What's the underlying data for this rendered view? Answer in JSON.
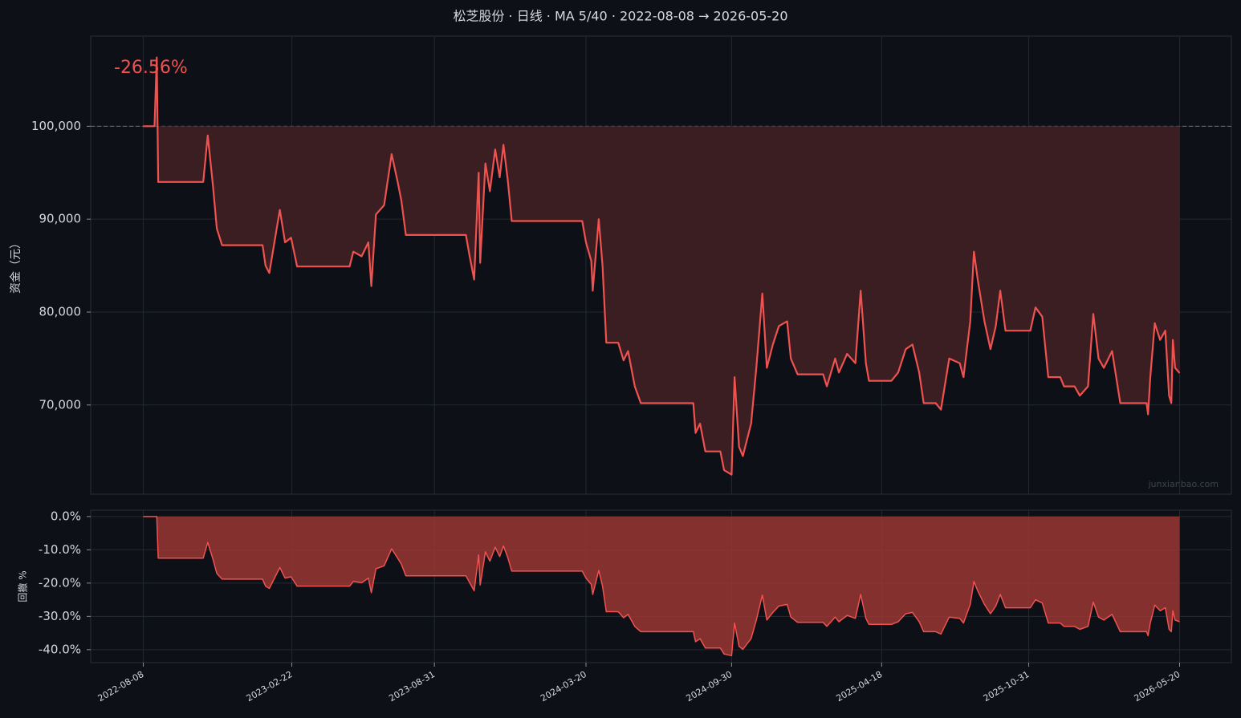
{
  "chart_data": [
    {
      "type": "line",
      "title": "松芝股份 · 日线 · MA 5/40 · 2022-08-08 → 2026-05-20",
      "ylabel": "资金（元）",
      "annotation": "-26.56%",
      "watermark": "junxianbao.com",
      "baseline": 100000,
      "grid": true,
      "xlim": [
        "2022-05-30",
        "2026-07-28"
      ],
      "xticks": [
        "2022-08-08",
        "2023-02-22",
        "2023-08-31",
        "2024-03-20",
        "2024-09-30",
        "2025-04-18",
        "2025-10-31",
        "2026-05-20"
      ],
      "ylim": [
        60400,
        109700
      ],
      "yticks": [
        {
          "value": 70000,
          "label": "70,000"
        },
        {
          "value": 80000,
          "label": "80,000"
        },
        {
          "value": 90000,
          "label": "90,000"
        },
        {
          "value": 100000,
          "label": "100,000"
        }
      ],
      "x": [
        "2022-08-08",
        "2022-08-23",
        "2022-08-26",
        "2022-08-28",
        "2022-10-27",
        "2022-11-02",
        "2022-11-09",
        "2022-11-14",
        "2022-11-21",
        "2023-01-14",
        "2023-01-18",
        "2023-01-23",
        "2023-02-06",
        "2023-02-13",
        "2023-02-21",
        "2023-03-01",
        "2023-05-10",
        "2023-05-15",
        "2023-05-26",
        "2023-06-04",
        "2023-06-08",
        "2023-06-14",
        "2023-06-25",
        "2023-07-05",
        "2023-07-13",
        "2023-07-18",
        "2023-07-24",
        "2023-10-12",
        "2023-10-17",
        "2023-10-23",
        "2023-10-29",
        "2023-10-31",
        "2023-11-07",
        "2023-11-13",
        "2023-11-20",
        "2023-11-26",
        "2023-12-01",
        "2023-12-07",
        "2023-12-12",
        "2024-03-15",
        "2024-03-20",
        "2024-03-27",
        "2024-03-29",
        "2024-04-06",
        "2024-04-11",
        "2024-04-16",
        "2024-05-02",
        "2024-05-09",
        "2024-05-15",
        "2024-05-24",
        "2024-06-01",
        "2024-08-10",
        "2024-08-13",
        "2024-08-19",
        "2024-08-26",
        "2024-09-15",
        "2024-09-20",
        "2024-09-30",
        "2024-10-04",
        "2024-10-10",
        "2024-10-15",
        "2024-10-26",
        "2024-11-02",
        "2024-11-10",
        "2024-11-16",
        "2024-11-24",
        "2024-12-02",
        "2024-12-13",
        "2024-12-18",
        "2024-12-27",
        "2025-01-30",
        "2025-02-04",
        "2025-02-15",
        "2025-02-20",
        "2025-03-03",
        "2025-03-14",
        "2025-03-21",
        "2025-03-28",
        "2025-04-01",
        "2025-05-01",
        "2025-05-10",
        "2025-05-20",
        "2025-05-29",
        "2025-06-07",
        "2025-06-13",
        "2025-06-29",
        "2025-07-06",
        "2025-07-17",
        "2025-07-31",
        "2025-08-05",
        "2025-08-14",
        "2025-08-19",
        "2025-08-24",
        "2025-09-02",
        "2025-09-10",
        "2025-09-17",
        "2025-09-23",
        "2025-09-30",
        "2025-11-02",
        "2025-11-09",
        "2025-11-18",
        "2025-11-26",
        "2025-12-12",
        "2025-12-17",
        "2025-12-31",
        "2026-01-07",
        "2026-01-18",
        "2026-01-25",
        "2026-02-01",
        "2026-02-08",
        "2026-02-19",
        "2026-03-02",
        "2026-04-06",
        "2026-04-08",
        "2026-04-11",
        "2026-04-17",
        "2026-04-24",
        "2026-05-01",
        "2026-05-06",
        "2026-05-09",
        "2026-05-11",
        "2026-05-14",
        "2026-05-20"
      ],
      "series": [
        {
          "color": "#f0524f",
          "fill_color": "#3b1e22",
          "values": [
            100000,
            100000,
            107400,
            94000,
            94000,
            99000,
            93500,
            89000,
            87200,
            87200,
            85000,
            84200,
            91000,
            87500,
            88000,
            84900,
            84900,
            86500,
            86000,
            87500,
            82800,
            90500,
            91500,
            97000,
            94000,
            92000,
            88300,
            88300,
            86000,
            83500,
            95000,
            85300,
            96000,
            93000,
            97500,
            94500,
            98000,
            94000,
            89800,
            89800,
            87500,
            85500,
            82300,
            90000,
            85000,
            76700,
            76700,
            74800,
            75800,
            72000,
            70200,
            70200,
            67000,
            68000,
            65000,
            65000,
            63000,
            62500,
            73000,
            65500,
            64500,
            68000,
            74000,
            82000,
            74000,
            76500,
            78500,
            79000,
            75000,
            73300,
            73300,
            72000,
            75000,
            73500,
            75500,
            74500,
            82300,
            74500,
            72600,
            72600,
            73500,
            76000,
            76500,
            73500,
            70200,
            70200,
            69500,
            75000,
            74500,
            73000,
            79000,
            86500,
            83500,
            79000,
            76000,
            78500,
            82300,
            78000,
            78000,
            80500,
            79500,
            73000,
            73000,
            72000,
            72000,
            71000,
            72000,
            79800,
            75000,
            74000,
            75800,
            70200,
            70200,
            69000,
            73000,
            78800,
            77000,
            78000,
            71000,
            70200,
            77000,
            74000,
            73440
          ]
        }
      ]
    },
    {
      "type": "area",
      "ylabel": "回撤 %",
      "grid": true,
      "xlim": [
        "2022-05-30",
        "2026-07-28"
      ],
      "xticks": [
        "2022-08-08",
        "2023-02-22",
        "2023-08-31",
        "2024-03-20",
        "2024-09-30",
        "2025-04-18",
        "2025-10-31",
        "2026-05-20"
      ],
      "ylim": [
        -43.9,
        1.9
      ],
      "yticks": [
        {
          "value": 0,
          "label": "0.0%"
        },
        {
          "value": -10,
          "label": "-10.0%"
        },
        {
          "value": -20,
          "label": "-20.0%"
        },
        {
          "value": -30,
          "label": "-30.0%"
        },
        {
          "value": -40,
          "label": "-40.0%"
        }
      ],
      "x": [
        "2022-08-08",
        "2022-08-23",
        "2022-08-26",
        "2022-08-28",
        "2022-10-27",
        "2022-11-02",
        "2022-11-09",
        "2022-11-14",
        "2022-11-21",
        "2023-01-14",
        "2023-01-18",
        "2023-01-23",
        "2023-02-06",
        "2023-02-13",
        "2023-02-21",
        "2023-03-01",
        "2023-05-10",
        "2023-05-15",
        "2023-05-26",
        "2023-06-04",
        "2023-06-08",
        "2023-06-14",
        "2023-06-25",
        "2023-07-05",
        "2023-07-13",
        "2023-07-18",
        "2023-07-24",
        "2023-10-12",
        "2023-10-17",
        "2023-10-23",
        "2023-10-29",
        "2023-10-31",
        "2023-11-07",
        "2023-11-13",
        "2023-11-20",
        "2023-11-26",
        "2023-12-01",
        "2023-12-07",
        "2023-12-12",
        "2024-03-15",
        "2024-03-20",
        "2024-03-27",
        "2024-03-29",
        "2024-04-06",
        "2024-04-11",
        "2024-04-16",
        "2024-05-02",
        "2024-05-09",
        "2024-05-15",
        "2024-05-24",
        "2024-06-01",
        "2024-08-10",
        "2024-08-13",
        "2024-08-19",
        "2024-08-26",
        "2024-09-15",
        "2024-09-20",
        "2024-09-30",
        "2024-10-04",
        "2024-10-10",
        "2024-10-15",
        "2024-10-26",
        "2024-11-02",
        "2024-11-10",
        "2024-11-16",
        "2024-11-24",
        "2024-12-02",
        "2024-12-13",
        "2024-12-18",
        "2024-12-27",
        "2025-01-30",
        "2025-02-04",
        "2025-02-15",
        "2025-02-20",
        "2025-03-03",
        "2025-03-14",
        "2025-03-21",
        "2025-03-28",
        "2025-04-01",
        "2025-05-01",
        "2025-05-10",
        "2025-05-20",
        "2025-05-29",
        "2025-06-07",
        "2025-06-13",
        "2025-06-29",
        "2025-07-06",
        "2025-07-17",
        "2025-07-31",
        "2025-08-05",
        "2025-08-14",
        "2025-08-19",
        "2025-08-24",
        "2025-09-02",
        "2025-09-10",
        "2025-09-17",
        "2025-09-23",
        "2025-09-30",
        "2025-11-02",
        "2025-11-09",
        "2025-11-18",
        "2025-11-26",
        "2025-12-12",
        "2025-12-17",
        "2025-12-31",
        "2026-01-07",
        "2026-01-18",
        "2026-01-25",
        "2026-02-01",
        "2026-02-08",
        "2026-02-19",
        "2026-03-02",
        "2026-04-06",
        "2026-04-08",
        "2026-04-11",
        "2026-04-17",
        "2026-04-24",
        "2026-05-01",
        "2026-05-06",
        "2026-05-09",
        "2026-05-11",
        "2026-05-14",
        "2026-05-20"
      ],
      "series": [
        {
          "color": "#f0524f",
          "fill_color": "#a13836",
          "values": [
            0,
            0,
            0,
            -12.5,
            -12.5,
            -7.8,
            -12.9,
            -17.1,
            -18.8,
            -18.8,
            -20.9,
            -21.6,
            -15.3,
            -18.5,
            -18.1,
            -20.9,
            -20.9,
            -19.5,
            -19.9,
            -18.5,
            -22.9,
            -15.7,
            -14.8,
            -9.7,
            -12.5,
            -14.3,
            -17.8,
            -17.8,
            -19.9,
            -22.3,
            -11.5,
            -20.6,
            -10.6,
            -13.4,
            -9.2,
            -12.0,
            -8.8,
            -12.5,
            -16.4,
            -16.4,
            -18.5,
            -20.4,
            -23.4,
            -16.2,
            -20.9,
            -28.6,
            -28.6,
            -30.4,
            -29.4,
            -33.0,
            -34.6,
            -34.6,
            -37.6,
            -36.7,
            -39.5,
            -39.5,
            -41.3,
            -41.8,
            -32.0,
            -39.0,
            -39.9,
            -36.7,
            -31.1,
            -23.6,
            -31.1,
            -28.8,
            -26.9,
            -26.4,
            -30.2,
            -31.8,
            -31.8,
            -33.0,
            -30.2,
            -31.6,
            -29.7,
            -30.6,
            -23.4,
            -30.6,
            -32.4,
            -32.4,
            -31.6,
            -29.2,
            -28.8,
            -31.6,
            -34.6,
            -34.6,
            -35.3,
            -30.2,
            -30.6,
            -32.0,
            -26.4,
            -19.5,
            -22.3,
            -26.4,
            -29.2,
            -26.9,
            -23.4,
            -27.4,
            -27.4,
            -25.0,
            -26.0,
            -32.0,
            -32.0,
            -33.0,
            -33.0,
            -33.9,
            -33.0,
            -25.7,
            -30.2,
            -31.1,
            -29.4,
            -34.6,
            -34.6,
            -35.8,
            -32.0,
            -26.6,
            -28.3,
            -27.4,
            -33.9,
            -34.6,
            -28.3,
            -31.1,
            -31.6
          ]
        }
      ]
    }
  ]
}
